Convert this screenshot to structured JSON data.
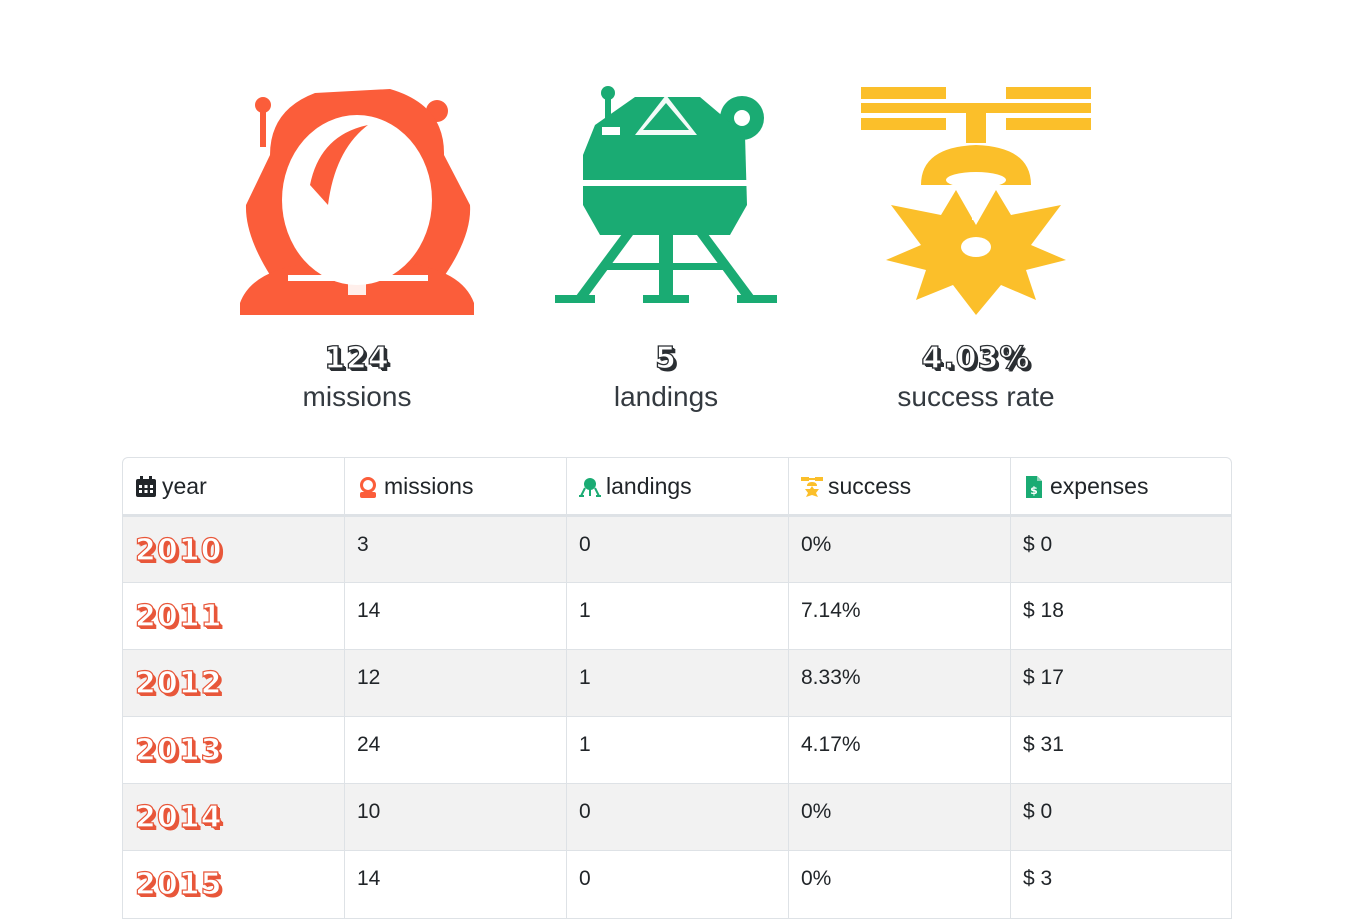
{
  "stats": {
    "missions": {
      "value": "124",
      "label": "missions",
      "icon": "astronaut-helmet-icon",
      "color": "#fb5d3a"
    },
    "landings": {
      "value": "5",
      "label": "landings",
      "icon": "lunar-lander-icon",
      "color": "#1aab73"
    },
    "success": {
      "value": "4.03%",
      "label": "success rate",
      "icon": "satellite-crash-icon",
      "color": "#fbbf2a"
    }
  },
  "table": {
    "headers": {
      "year": "year",
      "missions": "missions",
      "landings": "landings",
      "success": "success",
      "expenses": "expenses"
    },
    "rows": [
      {
        "year": "2010",
        "missions": "3",
        "landings": "0",
        "success": "0%",
        "expenses": "$ 0"
      },
      {
        "year": "2011",
        "missions": "14",
        "landings": "1",
        "success": "7.14%",
        "expenses": "$ 18"
      },
      {
        "year": "2012",
        "missions": "12",
        "landings": "1",
        "success": "8.33%",
        "expenses": "$ 17"
      },
      {
        "year": "2013",
        "missions": "24",
        "landings": "1",
        "success": "4.17%",
        "expenses": "$ 31"
      },
      {
        "year": "2014",
        "missions": "10",
        "landings": "0",
        "success": "0%",
        "expenses": "$ 0"
      },
      {
        "year": "2015",
        "missions": "14",
        "landings": "0",
        "success": "0%",
        "expenses": "$ 3"
      }
    ]
  },
  "colors": {
    "year_accent": "#e8573a",
    "border": "#dee2e6",
    "stripe": "#f2f2f2"
  }
}
